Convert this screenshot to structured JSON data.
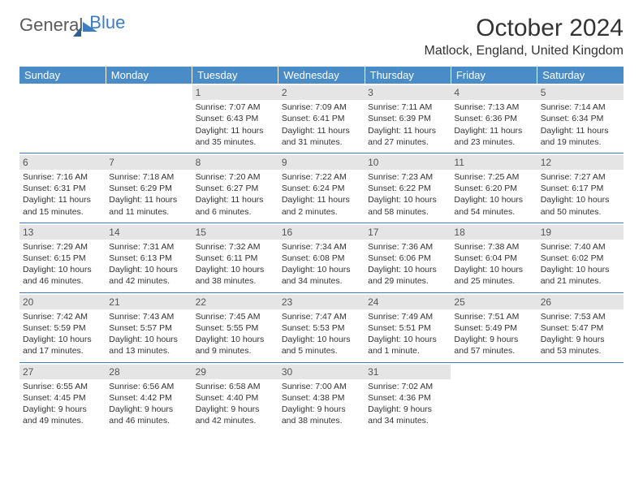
{
  "logo": {
    "text_general": "General",
    "text_blue": "Blue"
  },
  "header": {
    "month_title": "October 2024",
    "location": "Matlock, England, United Kingdom"
  },
  "colors": {
    "header_bg": "#4a8cc8",
    "row_divider": "#3b7ec4",
    "daynum_bg": "#e5e5e5",
    "brand_blue": "#3b7ec4"
  },
  "day_headers": [
    "Sunday",
    "Monday",
    "Tuesday",
    "Wednesday",
    "Thursday",
    "Friday",
    "Saturday"
  ],
  "weeks": [
    [
      {
        "num": "",
        "sunrise": "",
        "sunset": "",
        "daylight": ""
      },
      {
        "num": "",
        "sunrise": "",
        "sunset": "",
        "daylight": ""
      },
      {
        "num": "1",
        "sunrise": "Sunrise: 7:07 AM",
        "sunset": "Sunset: 6:43 PM",
        "daylight": "Daylight: 11 hours and 35 minutes."
      },
      {
        "num": "2",
        "sunrise": "Sunrise: 7:09 AM",
        "sunset": "Sunset: 6:41 PM",
        "daylight": "Daylight: 11 hours and 31 minutes."
      },
      {
        "num": "3",
        "sunrise": "Sunrise: 7:11 AM",
        "sunset": "Sunset: 6:39 PM",
        "daylight": "Daylight: 11 hours and 27 minutes."
      },
      {
        "num": "4",
        "sunrise": "Sunrise: 7:13 AM",
        "sunset": "Sunset: 6:36 PM",
        "daylight": "Daylight: 11 hours and 23 minutes."
      },
      {
        "num": "5",
        "sunrise": "Sunrise: 7:14 AM",
        "sunset": "Sunset: 6:34 PM",
        "daylight": "Daylight: 11 hours and 19 minutes."
      }
    ],
    [
      {
        "num": "6",
        "sunrise": "Sunrise: 7:16 AM",
        "sunset": "Sunset: 6:31 PM",
        "daylight": "Daylight: 11 hours and 15 minutes."
      },
      {
        "num": "7",
        "sunrise": "Sunrise: 7:18 AM",
        "sunset": "Sunset: 6:29 PM",
        "daylight": "Daylight: 11 hours and 11 minutes."
      },
      {
        "num": "8",
        "sunrise": "Sunrise: 7:20 AM",
        "sunset": "Sunset: 6:27 PM",
        "daylight": "Daylight: 11 hours and 6 minutes."
      },
      {
        "num": "9",
        "sunrise": "Sunrise: 7:22 AM",
        "sunset": "Sunset: 6:24 PM",
        "daylight": "Daylight: 11 hours and 2 minutes."
      },
      {
        "num": "10",
        "sunrise": "Sunrise: 7:23 AM",
        "sunset": "Sunset: 6:22 PM",
        "daylight": "Daylight: 10 hours and 58 minutes."
      },
      {
        "num": "11",
        "sunrise": "Sunrise: 7:25 AM",
        "sunset": "Sunset: 6:20 PM",
        "daylight": "Daylight: 10 hours and 54 minutes."
      },
      {
        "num": "12",
        "sunrise": "Sunrise: 7:27 AM",
        "sunset": "Sunset: 6:17 PM",
        "daylight": "Daylight: 10 hours and 50 minutes."
      }
    ],
    [
      {
        "num": "13",
        "sunrise": "Sunrise: 7:29 AM",
        "sunset": "Sunset: 6:15 PM",
        "daylight": "Daylight: 10 hours and 46 minutes."
      },
      {
        "num": "14",
        "sunrise": "Sunrise: 7:31 AM",
        "sunset": "Sunset: 6:13 PM",
        "daylight": "Daylight: 10 hours and 42 minutes."
      },
      {
        "num": "15",
        "sunrise": "Sunrise: 7:32 AM",
        "sunset": "Sunset: 6:11 PM",
        "daylight": "Daylight: 10 hours and 38 minutes."
      },
      {
        "num": "16",
        "sunrise": "Sunrise: 7:34 AM",
        "sunset": "Sunset: 6:08 PM",
        "daylight": "Daylight: 10 hours and 34 minutes."
      },
      {
        "num": "17",
        "sunrise": "Sunrise: 7:36 AM",
        "sunset": "Sunset: 6:06 PM",
        "daylight": "Daylight: 10 hours and 29 minutes."
      },
      {
        "num": "18",
        "sunrise": "Sunrise: 7:38 AM",
        "sunset": "Sunset: 6:04 PM",
        "daylight": "Daylight: 10 hours and 25 minutes."
      },
      {
        "num": "19",
        "sunrise": "Sunrise: 7:40 AM",
        "sunset": "Sunset: 6:02 PM",
        "daylight": "Daylight: 10 hours and 21 minutes."
      }
    ],
    [
      {
        "num": "20",
        "sunrise": "Sunrise: 7:42 AM",
        "sunset": "Sunset: 5:59 PM",
        "daylight": "Daylight: 10 hours and 17 minutes."
      },
      {
        "num": "21",
        "sunrise": "Sunrise: 7:43 AM",
        "sunset": "Sunset: 5:57 PM",
        "daylight": "Daylight: 10 hours and 13 minutes."
      },
      {
        "num": "22",
        "sunrise": "Sunrise: 7:45 AM",
        "sunset": "Sunset: 5:55 PM",
        "daylight": "Daylight: 10 hours and 9 minutes."
      },
      {
        "num": "23",
        "sunrise": "Sunrise: 7:47 AM",
        "sunset": "Sunset: 5:53 PM",
        "daylight": "Daylight: 10 hours and 5 minutes."
      },
      {
        "num": "24",
        "sunrise": "Sunrise: 7:49 AM",
        "sunset": "Sunset: 5:51 PM",
        "daylight": "Daylight: 10 hours and 1 minute."
      },
      {
        "num": "25",
        "sunrise": "Sunrise: 7:51 AM",
        "sunset": "Sunset: 5:49 PM",
        "daylight": "Daylight: 9 hours and 57 minutes."
      },
      {
        "num": "26",
        "sunrise": "Sunrise: 7:53 AM",
        "sunset": "Sunset: 5:47 PM",
        "daylight": "Daylight: 9 hours and 53 minutes."
      }
    ],
    [
      {
        "num": "27",
        "sunrise": "Sunrise: 6:55 AM",
        "sunset": "Sunset: 4:45 PM",
        "daylight": "Daylight: 9 hours and 49 minutes."
      },
      {
        "num": "28",
        "sunrise": "Sunrise: 6:56 AM",
        "sunset": "Sunset: 4:42 PM",
        "daylight": "Daylight: 9 hours and 46 minutes."
      },
      {
        "num": "29",
        "sunrise": "Sunrise: 6:58 AM",
        "sunset": "Sunset: 4:40 PM",
        "daylight": "Daylight: 9 hours and 42 minutes."
      },
      {
        "num": "30",
        "sunrise": "Sunrise: 7:00 AM",
        "sunset": "Sunset: 4:38 PM",
        "daylight": "Daylight: 9 hours and 38 minutes."
      },
      {
        "num": "31",
        "sunrise": "Sunrise: 7:02 AM",
        "sunset": "Sunset: 4:36 PM",
        "daylight": "Daylight: 9 hours and 34 minutes."
      },
      {
        "num": "",
        "sunrise": "",
        "sunset": "",
        "daylight": ""
      },
      {
        "num": "",
        "sunrise": "",
        "sunset": "",
        "daylight": ""
      }
    ]
  ]
}
